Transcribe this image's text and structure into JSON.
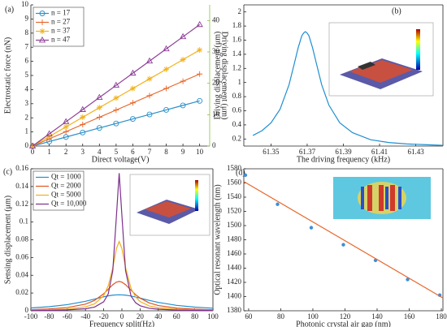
{
  "chart_data": [
    {
      "type": "line",
      "title": "(a)",
      "xlabel": "Direct voltage(V)",
      "ylabel": "Electrostatic force (nN)",
      "y2label": "Driving displacement (μm)",
      "y2color": "#8cbf3f",
      "x": [
        0,
        1,
        2,
        3,
        4,
        5,
        6,
        7,
        8,
        9,
        10
      ],
      "series": [
        {
          "name": "n = 17",
          "color": "#2a8fc8",
          "marker": "circle",
          "values": [
            0,
            0.32,
            0.64,
            0.96,
            1.28,
            1.6,
            1.92,
            2.24,
            2.56,
            2.88,
            3.2
          ]
        },
        {
          "name": "n = 27",
          "color": "#e8662a",
          "marker": "plus",
          "values": [
            0,
            0.51,
            1.02,
            1.53,
            2.04,
            2.55,
            3.06,
            3.57,
            4.08,
            4.59,
            5.1
          ]
        },
        {
          "name": "n = 37",
          "color": "#f2b21b",
          "marker": "star",
          "values": [
            0,
            0.68,
            1.36,
            2.04,
            2.72,
            3.4,
            4.08,
            4.76,
            5.44,
            6.12,
            6.8
          ]
        },
        {
          "name": "n = 47",
          "color": "#8e3f98",
          "marker": "triangle",
          "values": [
            0,
            0.86,
            1.72,
            2.58,
            3.44,
            4.3,
            5.16,
            6.02,
            6.88,
            7.74,
            8.6
          ]
        }
      ],
      "xlim": [
        -0.1,
        10.6
      ],
      "xticks": [
        0,
        1,
        2,
        3,
        4,
        5,
        6,
        7,
        8,
        9,
        10
      ],
      "ylim": [
        0,
        10
      ],
      "yticks": [
        0,
        1,
        2,
        3,
        4,
        5,
        6,
        7,
        8,
        9,
        10
      ],
      "y2lim": [
        0,
        45
      ],
      "y2ticks": [
        0,
        10,
        20,
        30,
        40
      ],
      "legend": "upper left"
    },
    {
      "type": "line",
      "title": "(b)",
      "xlabel": "The driving frequency (kHz)",
      "ylabel": "Driving displacement (μm)",
      "x": [
        61.34,
        61.345,
        61.35,
        61.355,
        61.36,
        61.363,
        61.365,
        61.367,
        61.368,
        61.369,
        61.37,
        61.371,
        61.373,
        61.375,
        61.378,
        61.382,
        61.388,
        61.395,
        61.405,
        61.415,
        61.425,
        61.435,
        61.445
      ],
      "series": [
        {
          "color": "#1f8fd1",
          "values": [
            0.25,
            0.317,
            0.428,
            0.62,
            0.97,
            1.28,
            1.49,
            1.66,
            1.7,
            1.72,
            1.7,
            1.66,
            1.49,
            1.28,
            0.97,
            0.68,
            0.43,
            0.29,
            0.19,
            0.15,
            0.13,
            0.12,
            0.11
          ]
        }
      ],
      "xlim": [
        61.335,
        61.445
      ],
      "xticks": [
        61.35,
        61.37,
        61.39,
        61.41,
        61.43
      ],
      "ylim": [
        0.1,
        2.1
      ],
      "yticks": [
        0.2,
        0.4,
        0.6,
        0.8,
        1,
        1.2,
        1.4,
        1.6,
        1.8,
        2
      ]
    },
    {
      "type": "line",
      "title": "(c)",
      "xlabel": "Frequency split(Hz)",
      "ylabel": "Sensing displacement (μm)",
      "x": [
        -100,
        -80,
        -60,
        -40,
        -30,
        -20,
        -15,
        -10,
        -6,
        -3,
        0,
        4,
        10,
        15,
        20,
        30,
        40,
        60,
        80,
        100
      ],
      "series": [
        {
          "name": "Qt = 1000",
          "color": "#1f8fd1",
          "values": [
            0.0032,
            0.0046,
            0.0069,
            0.0107,
            0.0132,
            0.0157,
            0.0168,
            0.0176,
            0.0179,
            0.018,
            0.0179,
            0.0176,
            0.0166,
            0.0155,
            0.0143,
            0.0117,
            0.0094,
            0.0061,
            0.0041,
            0.0029
          ]
        },
        {
          "name": "Qt = 2000",
          "color": "#e0541f",
          "values": [
            0.0013,
            0.0021,
            0.0036,
            0.0075,
            0.0117,
            0.0192,
            0.0243,
            0.0294,
            0.0323,
            0.033,
            0.0323,
            0.0294,
            0.0232,
            0.0182,
            0.0142,
            0.0089,
            0.0059,
            0.003,
            0.0018,
            0.0012
          ]
        },
        {
          "name": "Qt = 5000",
          "color": "#f0b01c",
          "values": [
            0.0007,
            0.0011,
            0.0019,
            0.0044,
            0.0078,
            0.0171,
            0.0281,
            0.0486,
            0.0702,
            0.078,
            0.0702,
            0.0486,
            0.0252,
            0.0156,
            0.0104,
            0.0054,
            0.0033,
            0.0016,
            0.0009,
            0.0006
          ]
        },
        {
          "name": "Qt = 10,000",
          "color": "#7e2f8e",
          "values": [
            0.0003,
            0.0005,
            0.001,
            0.0023,
            0.0042,
            0.0101,
            0.0191,
            0.0453,
            0.1073,
            0.155,
            0.1073,
            0.0453,
            0.0166,
            0.0091,
            0.0057,
            0.0028,
            0.0017,
            0.0008,
            0.0005,
            0.0003
          ]
        }
      ],
      "xlim": [
        -100,
        100
      ],
      "xticks": [
        -100,
        -80,
        -60,
        -40,
        -20,
        0,
        20,
        40,
        60,
        80,
        100
      ],
      "ylim": [
        0,
        0.16
      ],
      "yticks": [
        0,
        0.02,
        0.04,
        0.06,
        0.08,
        0.1,
        0.12,
        0.14,
        0.16
      ],
      "legend": "upper left"
    },
    {
      "type": "scatter",
      "title": "(d)",
      "xlabel": "Photonic crystal air gap (nm)",
      "ylabel": "Optical resonant wavelength (nm)",
      "x": [
        58,
        78,
        99,
        119,
        139,
        159,
        179
      ],
      "series": [
        {
          "color": "#3d8fd6",
          "marker": "dot",
          "line": false,
          "values": [
            1571,
            1530,
            1497,
            1473,
            1451,
            1424,
            1402
          ]
        },
        {
          "color": "#e8662a",
          "x": [
            57,
            181
          ],
          "values": [
            1562,
            1398
          ]
        }
      ],
      "xlim": [
        57,
        181
      ],
      "xticks": [
        60,
        80,
        100,
        120,
        140,
        160,
        180
      ],
      "ylim": [
        1380,
        1580
      ],
      "yticks": [
        1380,
        1400,
        1420,
        1440,
        1460,
        1480,
        1500,
        1520,
        1540,
        1560,
        1580
      ]
    }
  ]
}
